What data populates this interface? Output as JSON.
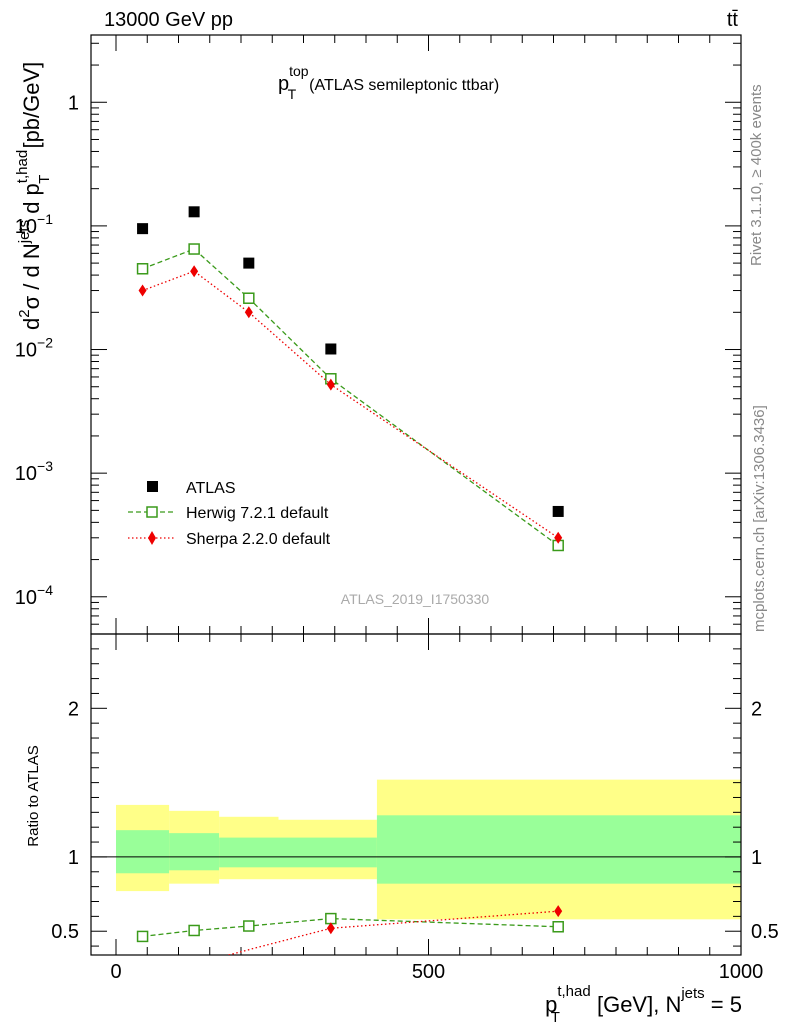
{
  "header": {
    "energy_label": "13000 GeV pp",
    "process_label": "tt̄"
  },
  "side_text": {
    "rivet": "Rivet 3.1.10, ≥ 400k events",
    "source": "mcplots.cern.ch [arXiv:1306.3436]"
  },
  "analysis_id": "ATLAS_2019_I1750330",
  "colors": {
    "atlas": "#000000",
    "herwig": "#3a9a1a",
    "sherpa": "#ee0000",
    "band_inner": "#99ff99",
    "band_outer": "#ffff88",
    "axis": "#000000",
    "side_text": "#888888"
  },
  "chart_data": [
    {
      "type": "scatter",
      "panel": "main",
      "title": {
        "base": "p",
        "sup": "top",
        "sub": "T",
        "rest": "(ATLAS semileptonic ttbar)"
      },
      "ylabel": {
        "pre": "d",
        "sup2": "2",
        "sigma": "σ / d N",
        "sup_jets": "jets",
        "mid": " d p",
        "sup_thad": "t,had",
        "sub_t": "T",
        "unit": " [pb/GeV]"
      },
      "yscale": "log",
      "xlim": [
        -40,
        1000
      ],
      "ylim": [
        5e-05,
        3.5
      ],
      "yticks": [
        {
          "value": 1,
          "base": "1",
          "exp": ""
        },
        {
          "value": 0.1,
          "base": "10",
          "exp": "−1"
        },
        {
          "value": 0.01,
          "base": "10",
          "exp": "−2"
        },
        {
          "value": 0.001,
          "base": "10",
          "exp": "−3"
        },
        {
          "value": 0.0001,
          "base": "10",
          "exp": "−4"
        }
      ],
      "legend_position": "bottom-left",
      "series": [
        {
          "name": "ATLAS",
          "key": "atlas",
          "marker": "square-filled",
          "line": "none",
          "x": [
            42.5,
            125,
            212.5,
            343.75,
            707.5
          ],
          "y": [
            0.095,
            0.13,
            0.05,
            0.0101,
            0.00049
          ]
        },
        {
          "name": "Herwig 7.2.1 default",
          "key": "herwig",
          "marker": "square-open",
          "line": "dashed",
          "x": [
            42.5,
            125,
            212.5,
            343.75,
            707.5
          ],
          "y": [
            0.045,
            0.065,
            0.026,
            0.0058,
            0.00026
          ]
        },
        {
          "name": "Sherpa 2.2.0 default",
          "key": "sherpa",
          "marker": "diamond-filled",
          "line": "dotted",
          "x": [
            42.5,
            125,
            212.5,
            343.75,
            707.5
          ],
          "y": [
            0.03,
            0.043,
            0.02,
            0.0052,
            0.0003
          ]
        }
      ]
    },
    {
      "type": "scatter",
      "panel": "ratio",
      "ylabel": "Ratio to ATLAS",
      "xlabel": {
        "base": "p",
        "sup": "t,had",
        "sub": "T",
        "mid": " [GeV], N",
        "sup2": "jets",
        "rest": " = 5"
      },
      "xlim": [
        -40,
        1000
      ],
      "ylim": [
        0.34,
        2.5
      ],
      "xticks": [
        {
          "value": 0,
          "label": "0"
        },
        {
          "value": 500,
          "label": "500"
        },
        {
          "value": 1000,
          "label": "1000"
        }
      ],
      "yticks": [
        {
          "value": 0.5,
          "label": "0.5"
        },
        {
          "value": 1,
          "label": "1"
        },
        {
          "value": 2,
          "label": "2"
        }
      ],
      "bands": [
        {
          "x0": 0,
          "x1": 85,
          "inner": [
            0.89,
            1.18
          ],
          "outer": [
            0.77,
            1.35
          ]
        },
        {
          "x0": 85,
          "x1": 165,
          "inner": [
            0.91,
            1.16
          ],
          "outer": [
            0.82,
            1.31
          ]
        },
        {
          "x0": 165,
          "x1": 260,
          "inner": [
            0.93,
            1.13
          ],
          "outer": [
            0.85,
            1.27
          ]
        },
        {
          "x0": 260,
          "x1": 417.5,
          "inner": [
            0.93,
            1.13
          ],
          "outer": [
            0.85,
            1.25
          ]
        },
        {
          "x0": 417.5,
          "x1": 1000,
          "inner": [
            0.82,
            1.28
          ],
          "outer": [
            0.58,
            1.52
          ]
        }
      ],
      "series": [
        {
          "name": "Herwig 7.2.1 default",
          "key": "herwig",
          "marker": "square-open",
          "line": "dashed",
          "x": [
            42.5,
            125,
            212.5,
            343.75,
            707.5
          ],
          "y": [
            0.465,
            0.505,
            0.535,
            0.585,
            0.53
          ]
        },
        {
          "name": "Sherpa 2.2.0 default",
          "key": "sherpa",
          "marker": "diamond-filled",
          "line": "dotted",
          "x": [
            180,
            343.75,
            707.5
          ],
          "y": [
            0.34,
            0.52,
            0.635
          ],
          "yerr": [
            0,
            0,
            0.025
          ]
        }
      ]
    }
  ]
}
